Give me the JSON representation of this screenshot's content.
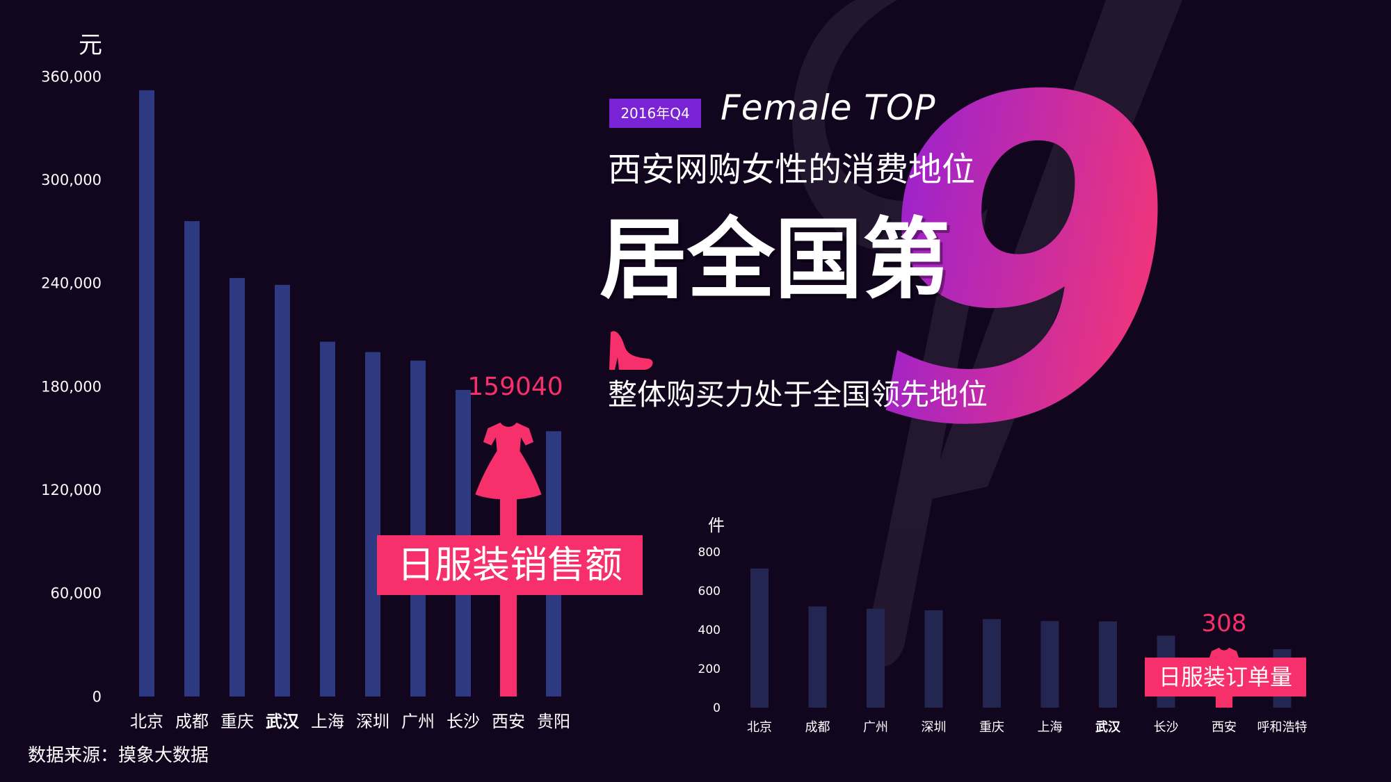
{
  "header": {
    "badge": "2016年Q4",
    "tag": "Female TOP",
    "headline": "西安网购女性的消费地位",
    "rank_text": "居全国第",
    "rank_number": "9",
    "subline": "整体购买力处于全国领先地位"
  },
  "source": "数据来源：摸象大数据",
  "colors": {
    "background": "#12061f",
    "bar_main": "#2d3a82",
    "bar_small": "#222650",
    "highlight": "#f72f6a",
    "badge": "#7a22d6",
    "number_gradient_start": "#8a1ee0",
    "number_gradient_end": "#f0357a"
  },
  "icons": {
    "dress": "dress-icon",
    "shoe": "high-heel-icon"
  },
  "chart_data": [
    {
      "type": "bar",
      "title": "日服装销售额",
      "ylabel": "元",
      "ylim": [
        0,
        360000
      ],
      "yticks": [
        "0",
        "60,000",
        "120,000",
        "180,000",
        "240,000",
        "300,000",
        "360,000"
      ],
      "categories": [
        "北京",
        "成都",
        "重庆",
        "武汉",
        "上海",
        "深圳",
        "广州",
        "长沙",
        "西安",
        "贵阳"
      ],
      "values": [
        352000,
        276000,
        243000,
        239000,
        206000,
        200000,
        195000,
        178000,
        159040,
        154000
      ],
      "bold_category": "武汉",
      "highlight_category": "西安",
      "highlight_value_label": "159040"
    },
    {
      "type": "bar",
      "title": "日服装订单量",
      "ylabel": "件",
      "ylim": [
        0,
        800
      ],
      "yticks": [
        "0",
        "200",
        "400",
        "600",
        "800"
      ],
      "categories": [
        "北京",
        "成都",
        "广州",
        "深圳",
        "重庆",
        "上海",
        "武汉",
        "长沙",
        "西安",
        "呼和浩特"
      ],
      "values": [
        715,
        520,
        508,
        500,
        455,
        445,
        443,
        370,
        308,
        300
      ],
      "bold_category": "武汉",
      "highlight_category": "西安",
      "highlight_value_label": "308"
    }
  ]
}
